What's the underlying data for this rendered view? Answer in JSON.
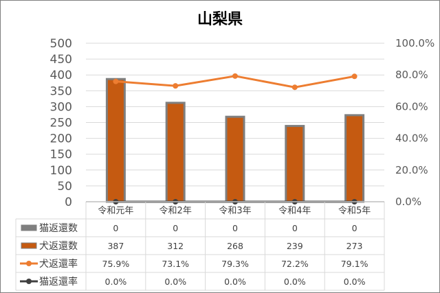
{
  "chart_data": {
    "type": "bar",
    "title": "山梨県",
    "categories": [
      "令和元年",
      "令和2年",
      "令和3年",
      "令和4年",
      "令和5年"
    ],
    "ylim": [
      0,
      500
    ],
    "yticks": [
      "0",
      "50",
      "100",
      "150",
      "200",
      "250",
      "300",
      "350",
      "400",
      "450",
      "500"
    ],
    "y2lim": [
      0,
      100
    ],
    "y2ticks": [
      "0.0%",
      "20.0%",
      "40.0%",
      "60.0%",
      "80.0%",
      "100.0%"
    ],
    "grid": true,
    "legend": "data-table",
    "series": [
      {
        "name": "猫返還数",
        "type": "bar",
        "axis": "left",
        "color": "#7f7f7f",
        "values": [
          0,
          0,
          0,
          0,
          0
        ],
        "labels": [
          "0",
          "0",
          "0",
          "0",
          "0"
        ]
      },
      {
        "name": "犬返還数",
        "type": "bar",
        "axis": "left",
        "color": "#c55a11",
        "border": "#7f7f7f",
        "values": [
          387,
          312,
          268,
          239,
          273
        ],
        "labels": [
          "387",
          "312",
          "268",
          "239",
          "273"
        ]
      },
      {
        "name": "犬返還率",
        "type": "line",
        "axis": "right",
        "color": "#ed7d31",
        "values": [
          75.9,
          73.1,
          79.3,
          72.2,
          79.1
        ],
        "labels": [
          "75.9%",
          "73.1%",
          "79.3%",
          "72.2%",
          "79.1%"
        ]
      },
      {
        "name": "猫返還率",
        "type": "line",
        "axis": "right",
        "color": "#404040",
        "values": [
          0,
          0,
          0,
          0,
          0
        ],
        "labels": [
          "0.0%",
          "0.0%",
          "0.0%",
          "0.0%",
          "0.0%"
        ]
      }
    ]
  }
}
